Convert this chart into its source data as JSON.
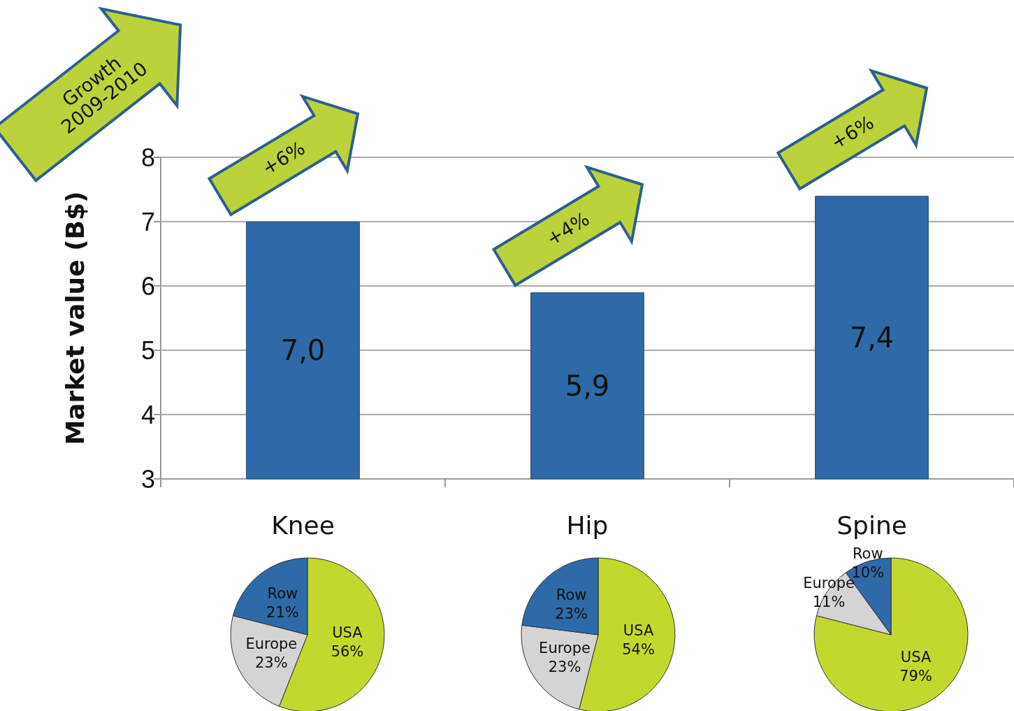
{
  "chart_data": [
    {
      "type": "bar",
      "ylabel": "Market value (B$)",
      "categories": [
        "Knee",
        "Hip",
        "Spine"
      ],
      "values": [
        7.0,
        5.9,
        7.4
      ],
      "value_labels": [
        "7,0",
        "5,9",
        "7,4"
      ],
      "color": "#2e6aa8",
      "ylim": [
        3,
        8
      ],
      "yticks": [
        3,
        4,
        5,
        6,
        7,
        8
      ],
      "grid": "y",
      "legend": false,
      "annotations": [
        "Growth 2009-2010",
        {
          "text": "+6%",
          "x": "Knee",
          "y": 7.0
        },
        {
          "text": "+4%",
          "x": "Hip",
          "y": 5.9
        },
        {
          "text": "+6%",
          "x": "Spine",
          "y": 7.4
        }
      ]
    },
    {
      "type": "pie",
      "categories": [
        "USA",
        "Europe",
        "Row"
      ],
      "values": [
        56,
        23,
        21
      ],
      "value_labels": [
        "56%",
        "23%",
        "21%"
      ],
      "colors": [
        "#c3d82e",
        "#d4d4d4",
        "#2e6aa8"
      ],
      "legend": false
    },
    {
      "type": "pie",
      "categories": [
        "USA",
        "Europe",
        "Row"
      ],
      "values": [
        54,
        23,
        23
      ],
      "value_labels": [
        "54%",
        "23%",
        "23%"
      ],
      "colors": [
        "#c3d82e",
        "#d4d4d4",
        "#2e6aa8"
      ],
      "legend": false
    },
    {
      "type": "pie",
      "categories": [
        "USA",
        "Europe",
        "Row"
      ],
      "values": [
        79,
        11,
        10
      ],
      "value_labels": [
        "79%",
        "11%",
        "10%"
      ],
      "colors": [
        "#c3d82e",
        "#d4d4d4",
        "#2e6aa8"
      ],
      "legend": false
    }
  ]
}
